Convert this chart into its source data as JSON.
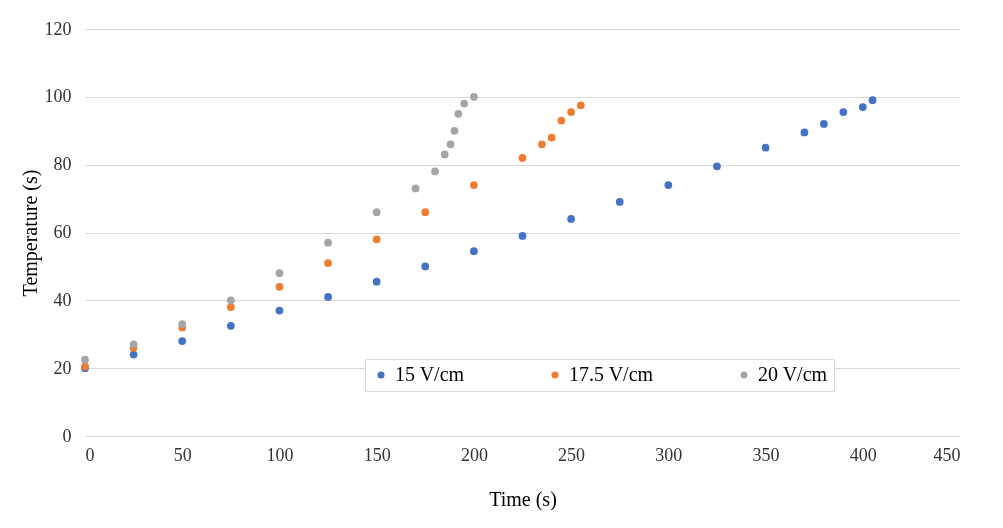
{
  "chart_data": {
    "type": "scatter",
    "xlabel": "Time (s)",
    "ylabel": "Temperature (s)",
    "xlim": [
      0,
      450
    ],
    "xticks": [
      0,
      50,
      100,
      150,
      200,
      250,
      300,
      350,
      400,
      450
    ],
    "ylim": [
      0,
      120
    ],
    "yticks": [
      0,
      20,
      40,
      60,
      80,
      100,
      120
    ],
    "grid": "y",
    "legend": "bottom",
    "marker": "circle",
    "series": [
      {
        "name": "15 V/cm",
        "color": "#4472c4",
        "x": [
          0,
          25,
          50,
          75,
          100,
          125,
          150,
          175,
          200,
          225,
          250,
          275,
          300,
          325,
          350,
          370,
          380,
          390,
          400,
          405
        ],
        "values": [
          20,
          24,
          28,
          32.5,
          37,
          41,
          45.5,
          50,
          54.5,
          59,
          64,
          69,
          74,
          79.5,
          85,
          89.5,
          92,
          95.5,
          97,
          99
        ]
      },
      {
        "name": "17.5 V/cm",
        "color": "#ed7d31",
        "x": [
          0,
          25,
          50,
          75,
          100,
          125,
          150,
          175,
          200,
          225,
          235,
          240,
          245,
          250,
          255
        ],
        "values": [
          20.5,
          26,
          32,
          38,
          44,
          51,
          58,
          66,
          74,
          82,
          86,
          88,
          93,
          95.5,
          97.5
        ]
      },
      {
        "name": "20 V/cm",
        "color": "#a5a5a5",
        "x": [
          0,
          25,
          50,
          75,
          100,
          125,
          150,
          170,
          180,
          185,
          188,
          190,
          192,
          195,
          200
        ],
        "values": [
          22.5,
          27,
          33,
          40,
          48,
          57,
          66,
          73,
          78,
          83,
          86,
          90,
          95,
          98,
          100
        ]
      }
    ]
  }
}
